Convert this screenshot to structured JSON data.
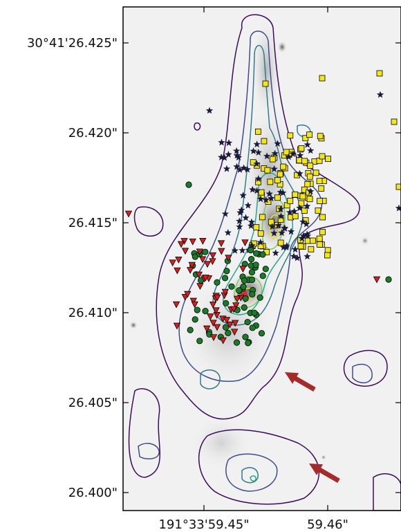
{
  "chart_data": {
    "type": "scatter",
    "title": "",
    "xlabel": "",
    "ylabel": "",
    "x_axis": {
      "tick_labels": [
        "191°33'59.45\"",
        "59.46\""
      ]
    },
    "y_axis": {
      "range": [
        26.399,
        26.427
      ],
      "ticks": [
        26.425,
        26.42,
        26.415,
        26.41,
        26.405,
        26.4
      ],
      "tick_labels": [
        "30°41'26.425\"",
        "26.420\"",
        "26.415\"",
        "26.410\"",
        "26.405\"",
        "26.400\""
      ]
    },
    "contours": {
      "colors": [
        "#3b0a5e",
        "#3d4a8c",
        "#2e7a8a",
        "#27a68a",
        "#7ccd52",
        "#e8e61a"
      ]
    },
    "marker_series": [
      {
        "marker": "square",
        "color": "#f3e51b"
      },
      {
        "marker": "star",
        "color": "#1a1a3a"
      },
      {
        "marker": "circle",
        "color": "#1a7a2a"
      },
      {
        "marker": "triangle-down",
        "color": "#d42020"
      }
    ],
    "arrow_color": "#a52a2a",
    "background": "grayscale image"
  }
}
